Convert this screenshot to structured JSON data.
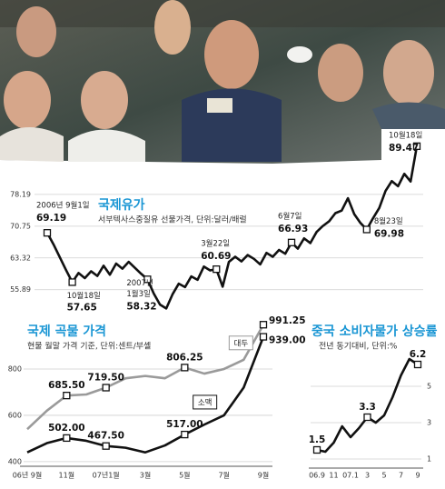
{
  "chart_data": [
    {
      "type": "line",
      "title": "국제유가",
      "subtitle": "서부텍사스중질유 선물가격, 단위:달러/배럴",
      "values": [
        69.19,
        66.5,
        63.5,
        60.5,
        57.65,
        59.8,
        58.6,
        60.2,
        59.1,
        61.5,
        59.4,
        62.0,
        60.8,
        62.4,
        61.0,
        59.6,
        58.32,
        55.0,
        52.4,
        51.5,
        54.8,
        57.3,
        56.5,
        59.0,
        58.2,
        61.3,
        60.4,
        60.69,
        56.6,
        62.4,
        63.6,
        62.5,
        64.0,
        63.1,
        61.8,
        64.5,
        63.6,
        65.2,
        64.3,
        66.93,
        65.5,
        67.9,
        66.8,
        69.4,
        70.8,
        71.9,
        73.8,
        74.4,
        77.3,
        73.6,
        71.5,
        69.98,
        72.6,
        75.0,
        79.0,
        81.3,
        80.1,
        83.0,
        81.2,
        89.47
      ],
      "date_labels": [
        "2006년 9월1일",
        null,
        null,
        null,
        "10월18일",
        null,
        null,
        null,
        null,
        null,
        null,
        null,
        null,
        null,
        null,
        null,
        [
          "2007년",
          "1월3일"
        ],
        null,
        null,
        null,
        null,
        null,
        null,
        null,
        null,
        null,
        null,
        "3월22일",
        null,
        null,
        null,
        null,
        null,
        null,
        null,
        null,
        null,
        null,
        null,
        "6월7일",
        null,
        null,
        null,
        null,
        null,
        null,
        null,
        null,
        null,
        null,
        null,
        "8월23일",
        null,
        null,
        null,
        null,
        null,
        null,
        null,
        "10월18일"
      ],
      "color": "#111111",
      "ylim": [
        50.3,
        93.9
      ],
      "yticks": [
        78.19,
        70.75,
        63.32,
        55.89
      ],
      "grid": true,
      "y_axis_side": "left"
    },
    {
      "type": "line",
      "title": "국제 곡물 가격",
      "subtitle": "현물 월말 가격 기준, 단위:센트/부셸",
      "categories": [
        "06년 9월",
        null,
        "11월",
        null,
        "07년1월",
        null,
        "3월",
        null,
        "5월",
        null,
        "7월",
        null,
        "9월"
      ],
      "series": [
        {
          "name": "대두",
          "color": "#9a9a9a",
          "values": [
            540,
            620,
            685.5,
            690,
            719.5,
            760,
            770,
            760,
            806.25,
            780,
            800,
            840,
            991.25
          ],
          "value_labels": [
            null,
            null,
            "685.50",
            null,
            "719.50",
            null,
            null,
            null,
            "806.25",
            null,
            null,
            null,
            "991.25"
          ]
        },
        {
          "name": "소맥",
          "color": "#111111",
          "values": [
            440,
            480,
            502,
            490,
            467.5,
            460,
            440,
            470,
            517,
            560,
            600,
            720,
            939
          ],
          "value_labels": [
            null,
            null,
            "502.00",
            null,
            "467.50",
            null,
            null,
            null,
            "517.00",
            null,
            null,
            null,
            "939.00"
          ]
        }
      ],
      "ylim": [
        380,
        1000
      ],
      "yticks": [
        400,
        600,
        800
      ],
      "grid": true,
      "y_axis_side": "left"
    },
    {
      "type": "line",
      "title": "중국 소비자물가 상승률",
      "subtitle": "전년 동기대비, 단위:%",
      "categories": [
        "06.9",
        null,
        "11",
        null,
        "07.1",
        null,
        "3",
        null,
        "5",
        null,
        "7",
        null,
        "9"
      ],
      "values": [
        1.5,
        1.4,
        1.9,
        2.8,
        2.2,
        2.7,
        3.3,
        3.0,
        3.4,
        4.4,
        5.6,
        6.5,
        6.2
      ],
      "value_labels": [
        "1.5",
        null,
        null,
        null,
        null,
        null,
        "3.3",
        null,
        null,
        null,
        null,
        null,
        "6.2"
      ],
      "color": "#111111",
      "ylim": [
        0.5,
        7
      ],
      "yticks": [
        1,
        3,
        5
      ],
      "grid": true,
      "y_axis_side": "right"
    }
  ]
}
